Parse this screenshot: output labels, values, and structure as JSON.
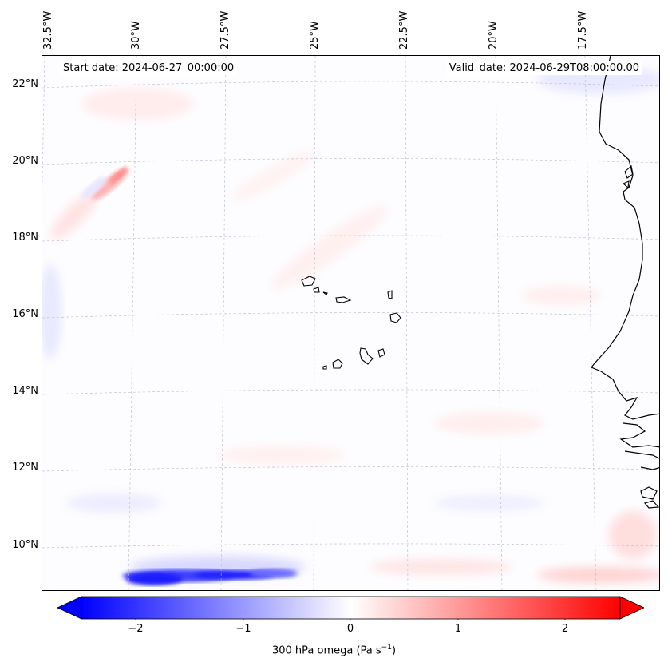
{
  "map": {
    "start_date": "Start date: 2024-06-27_00:00:00",
    "valid_date": "Valid_date: 2024-06-29T08:00:00.00",
    "lon_labels": [
      "32.5°W",
      "30°W",
      "27.5°W",
      "25°W",
      "22.5°W",
      "20°W",
      "17.5°W"
    ],
    "lat_labels": [
      "22°N",
      "20°N",
      "18°N",
      "16°N",
      "14°N",
      "12°N",
      "10°N"
    ],
    "field": "300 hPa omega",
    "colors": {
      "negative": "#0000ff",
      "zero": "#ffffff",
      "positive": "#ff0000",
      "coast": "#000000"
    }
  },
  "colorbar": {
    "ticks": [
      "−2",
      "−1",
      "0",
      "1",
      "2"
    ],
    "label": "300 hPa omega (Pa s",
    "label_sup": "−1",
    "label_end": ")",
    "min": -2.6,
    "max": 2.6
  }
}
